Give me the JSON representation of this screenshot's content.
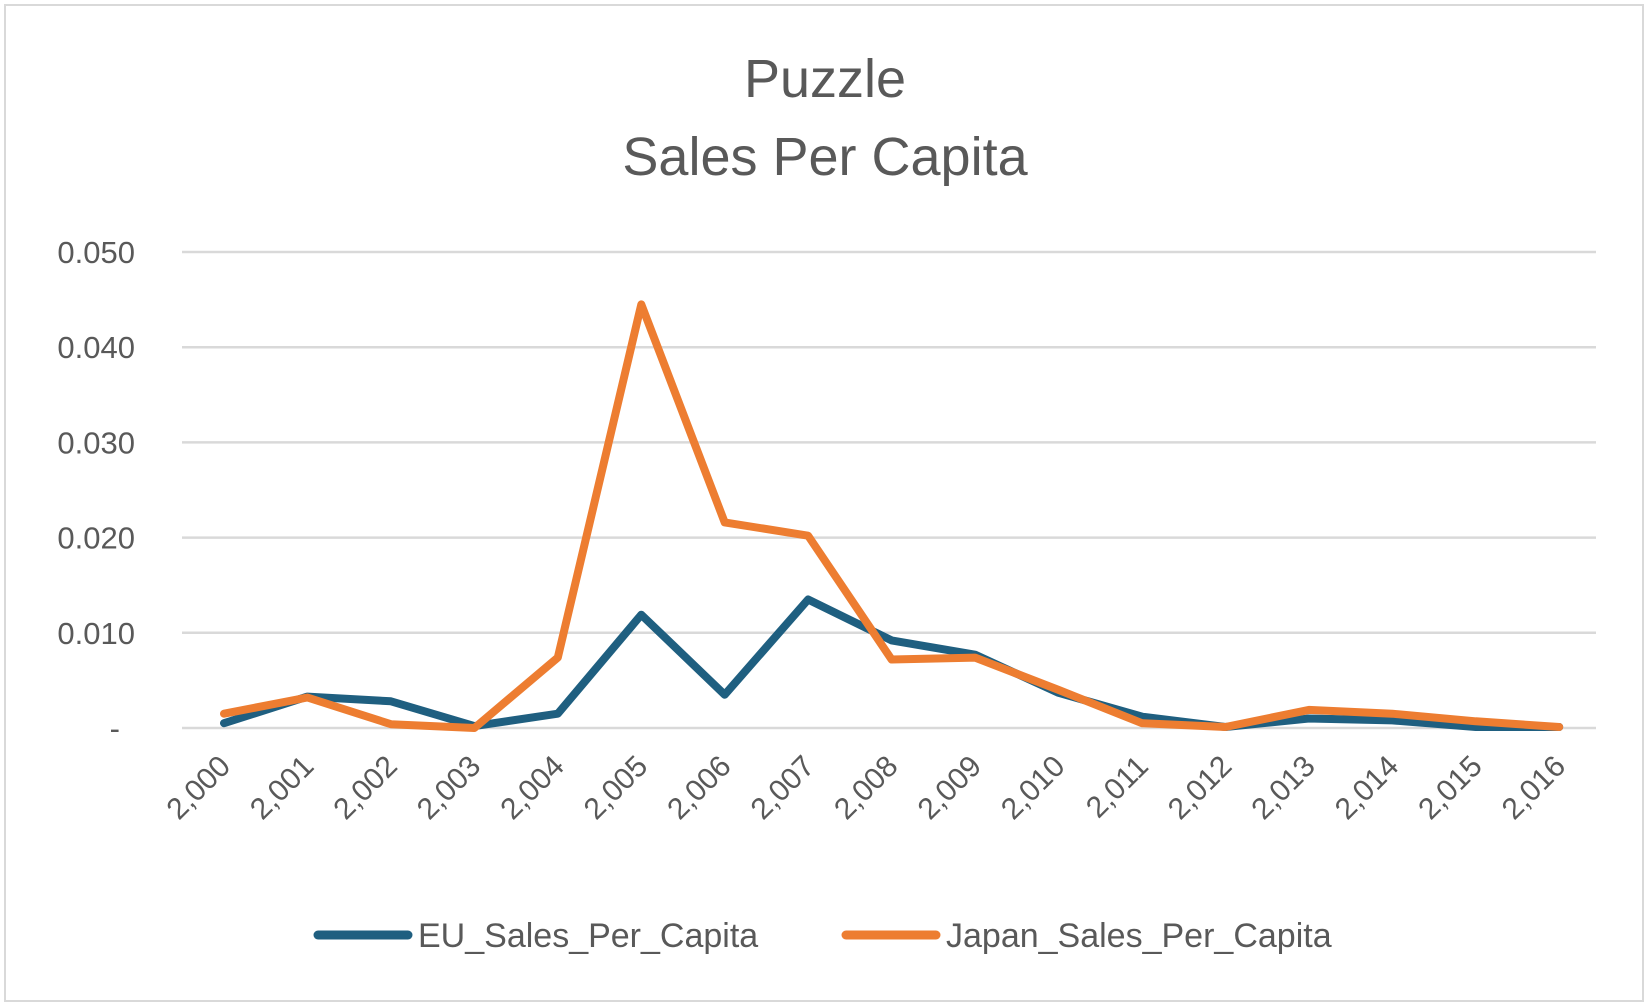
{
  "chart_data": {
    "type": "line",
    "title": "Puzzle",
    "subtitle": "Sales Per Capita",
    "xlabel": "",
    "ylabel": "",
    "categories": [
      "2,000",
      "2,001",
      "2,002",
      "2,003",
      "2,004",
      "2,005",
      "2,006",
      "2,007",
      "2,008",
      "2,009",
      "2,010",
      "2,011",
      "2,012",
      "2,013",
      "2,014",
      "2,015",
      "2,016"
    ],
    "y_ticks": [
      "-",
      "0.010",
      "0.020",
      "0.030",
      "0.040",
      "0.050"
    ],
    "ylim": [
      0,
      0.05
    ],
    "grid": true,
    "legend": "bottom",
    "series": [
      {
        "name": "EU_Sales_Per_Capita",
        "color": "#1f5f80",
        "values": [
          0.0005,
          0.0033,
          0.0028,
          0.0002,
          0.0015,
          0.0119,
          0.0035,
          0.0135,
          0.0092,
          0.0077,
          0.0037,
          0.0012,
          0.0001,
          0.001,
          0.0008,
          0.0001,
          0.0001
        ]
      },
      {
        "name": "Japan_Sales_Per_Capita",
        "color": "#ed7d31",
        "values": [
          0.0015,
          0.0032,
          0.0004,
          0.0,
          0.0074,
          0.0445,
          0.0216,
          0.0202,
          0.0072,
          0.0074,
          0.004,
          0.0005,
          0.0001,
          0.0019,
          0.0015,
          0.0007,
          0.0001
        ]
      }
    ]
  }
}
